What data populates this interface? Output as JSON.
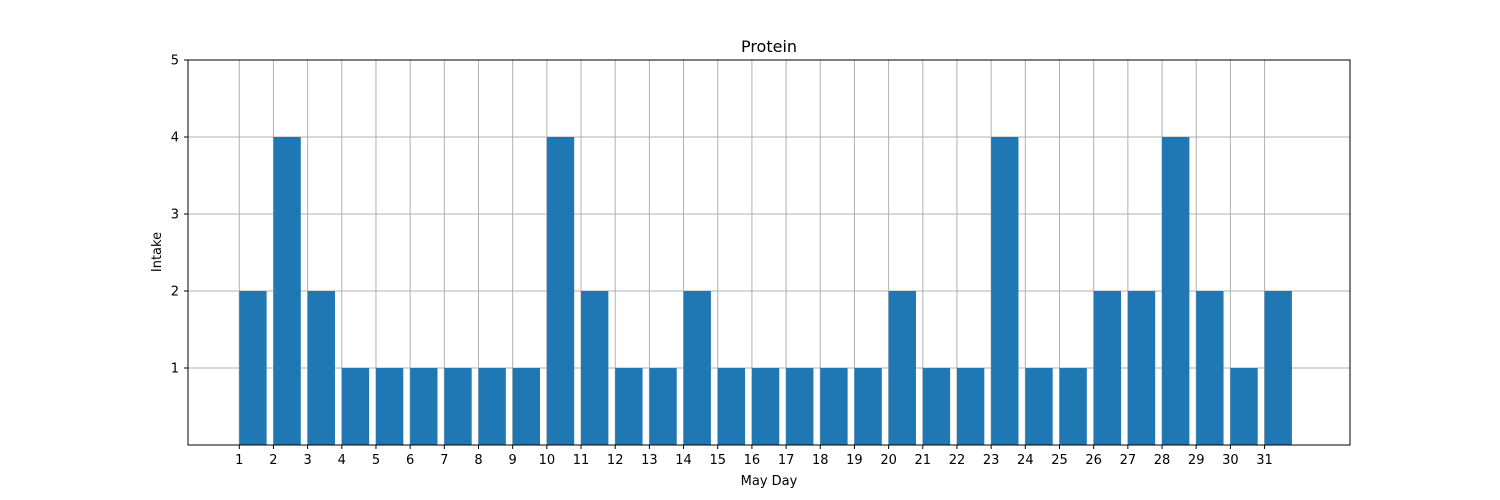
{
  "chart_data": {
    "type": "bar",
    "title": "Protein",
    "xlabel": "May Day",
    "ylabel": "Intake",
    "x": [
      1,
      2,
      3,
      4,
      5,
      6,
      7,
      8,
      9,
      10,
      11,
      12,
      13,
      14,
      15,
      16,
      17,
      18,
      19,
      20,
      21,
      22,
      23,
      24,
      25,
      26,
      27,
      28,
      29,
      30,
      31
    ],
    "values": [
      2,
      4,
      2,
      1,
      1,
      1,
      1,
      1,
      1,
      4,
      2,
      1,
      1,
      2,
      1,
      1,
      1,
      1,
      1,
      2,
      1,
      1,
      4,
      1,
      1,
      2,
      2,
      4,
      2,
      1,
      2
    ],
    "xlim": [
      -0.5,
      33.5
    ],
    "ylim": [
      0,
      5
    ],
    "yticks": [
      1,
      2,
      3,
      4,
      5
    ],
    "bar_align": "edge",
    "bar_width": 0.8,
    "bar_color": "#1f77b4",
    "grid": true,
    "legend": "none"
  }
}
